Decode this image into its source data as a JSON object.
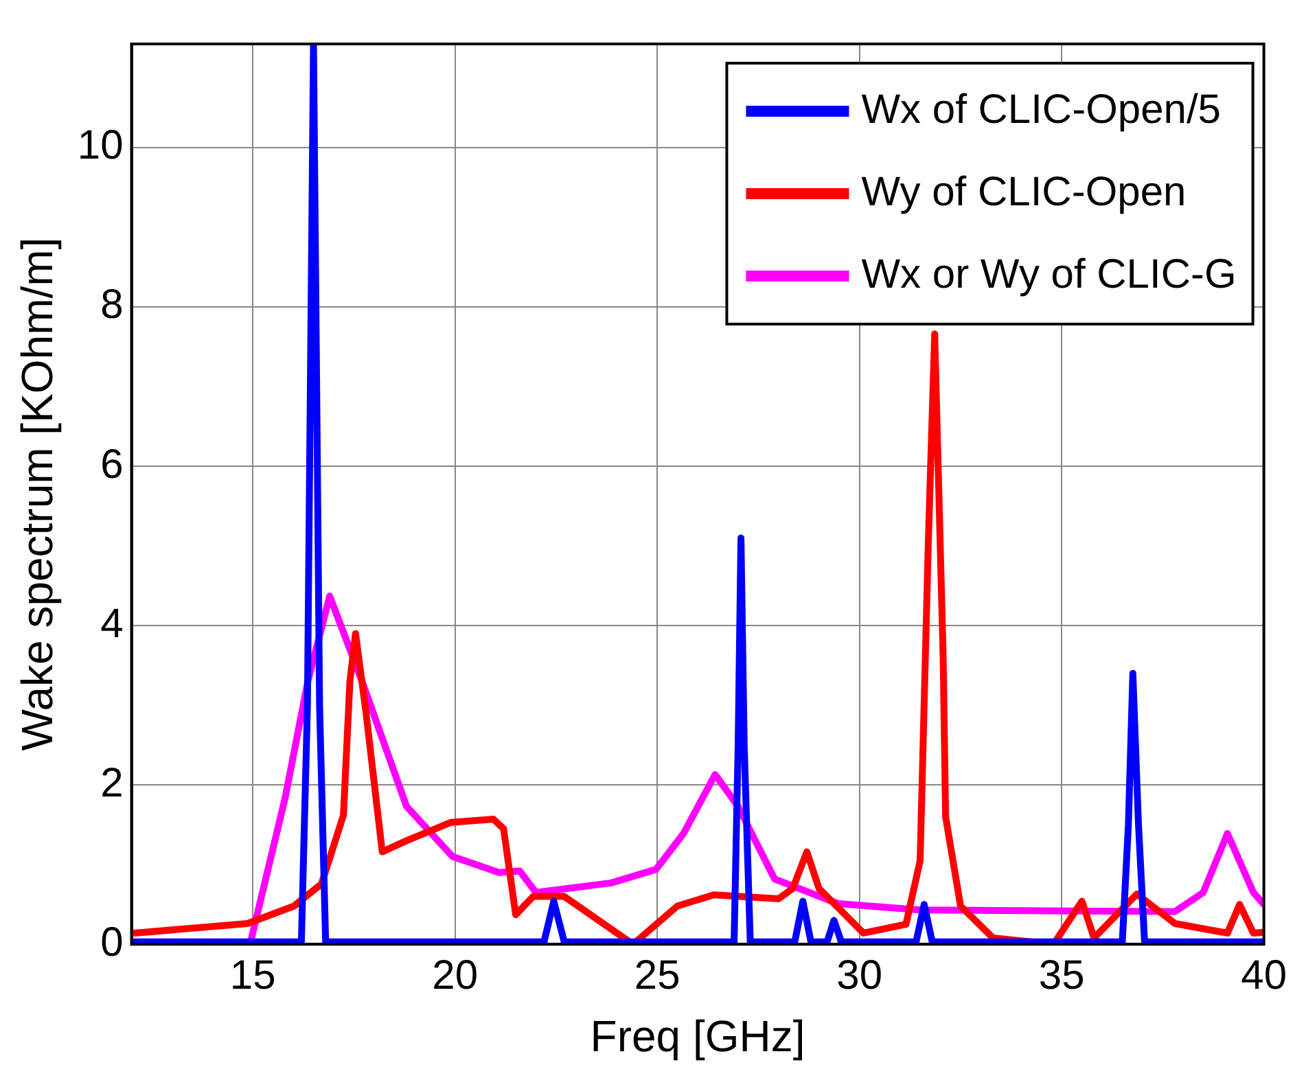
{
  "chart_data": {
    "type": "line",
    "xlabel": "Freq [GHz]",
    "ylabel": "Wake spectrum [KOhm/m]",
    "xlim": [
      12,
      40
    ],
    "ylim": [
      0,
      11.3
    ],
    "xticks": [
      15,
      20,
      25,
      30,
      35,
      40
    ],
    "yticks": [
      0,
      2,
      4,
      6,
      8,
      10
    ],
    "grid": true,
    "legend": "top right",
    "marker": "none",
    "line_style": "solid",
    "series": [
      {
        "name": "Wx of CLIC-Open/5",
        "color": "#0000ff",
        "x": [
          12,
          16.2,
          16.35,
          16.5,
          16.65,
          16.8,
          22.2,
          22.44,
          22.7,
          26.9,
          27.0,
          27.07,
          27.15,
          27.3,
          28.4,
          28.6,
          28.8,
          29.2,
          29.37,
          29.55,
          31.4,
          31.6,
          31.8,
          36.5,
          36.65,
          36.76,
          36.9,
          37.05,
          40
        ],
        "values": [
          0.03,
          0.03,
          3,
          11.3,
          3,
          0.03,
          0.03,
          0.54,
          0.03,
          0.03,
          2.5,
          5.1,
          2.5,
          0.03,
          0.03,
          0.54,
          0.03,
          0.03,
          0.3,
          0.03,
          0.03,
          0.5,
          0.03,
          0.03,
          1.5,
          3.4,
          1.5,
          0.03,
          0.03
        ]
      },
      {
        "name": "Wy of CLIC-Open",
        "color": "#ff0000",
        "x": [
          12.07,
          14.87,
          16.02,
          16.7,
          17.24,
          17.4,
          17.54,
          17.8,
          18.2,
          18.8,
          19.9,
          20.95,
          21.2,
          21.5,
          21.93,
          22.7,
          24.4,
          25.5,
          26.4,
          28.0,
          28.35,
          28.7,
          29.0,
          30.1,
          31.15,
          31.5,
          31.7,
          31.86,
          32.07,
          32.13,
          32.5,
          33.3,
          34.8,
          35.5,
          35.8,
          36.86,
          37.8,
          39.1,
          39.4,
          39.74,
          40
        ],
        "values": [
          0.14,
          0.26,
          0.48,
          0.76,
          1.62,
          3.3,
          3.9,
          2.9,
          1.16,
          1.3,
          1.53,
          1.57,
          1.45,
          0.37,
          0.6,
          0.6,
          0.0,
          0.48,
          0.62,
          0.57,
          0.7,
          1.16,
          0.7,
          0.14,
          0.25,
          1.05,
          5.0,
          7.66,
          3.6,
          1.6,
          0.48,
          0.08,
          0.0,
          0.54,
          0.08,
          0.63,
          0.26,
          0.14,
          0.5,
          0.14,
          0.15
        ]
      },
      {
        "name": "Wx or Wy of CLIC-G",
        "color": "#ff00ff",
        "x": [
          12.07,
          14.94,
          15.8,
          16.36,
          16.9,
          17.7,
          18.8,
          19.94,
          21.09,
          21.6,
          22.0,
          23.86,
          24.97,
          25.65,
          26.43,
          27.0,
          27.9,
          29.47,
          31.5,
          37.8,
          38.5,
          39.1,
          39.74,
          40
        ],
        "values": [
          0,
          0.02,
          1.84,
          3.3,
          4.37,
          3.3,
          1.73,
          1.1,
          0.9,
          0.92,
          0.65,
          0.77,
          0.94,
          1.39,
          2.13,
          1.73,
          0.82,
          0.51,
          0.43,
          0.41,
          0.65,
          1.39,
          0.65,
          0.5
        ]
      }
    ]
  }
}
